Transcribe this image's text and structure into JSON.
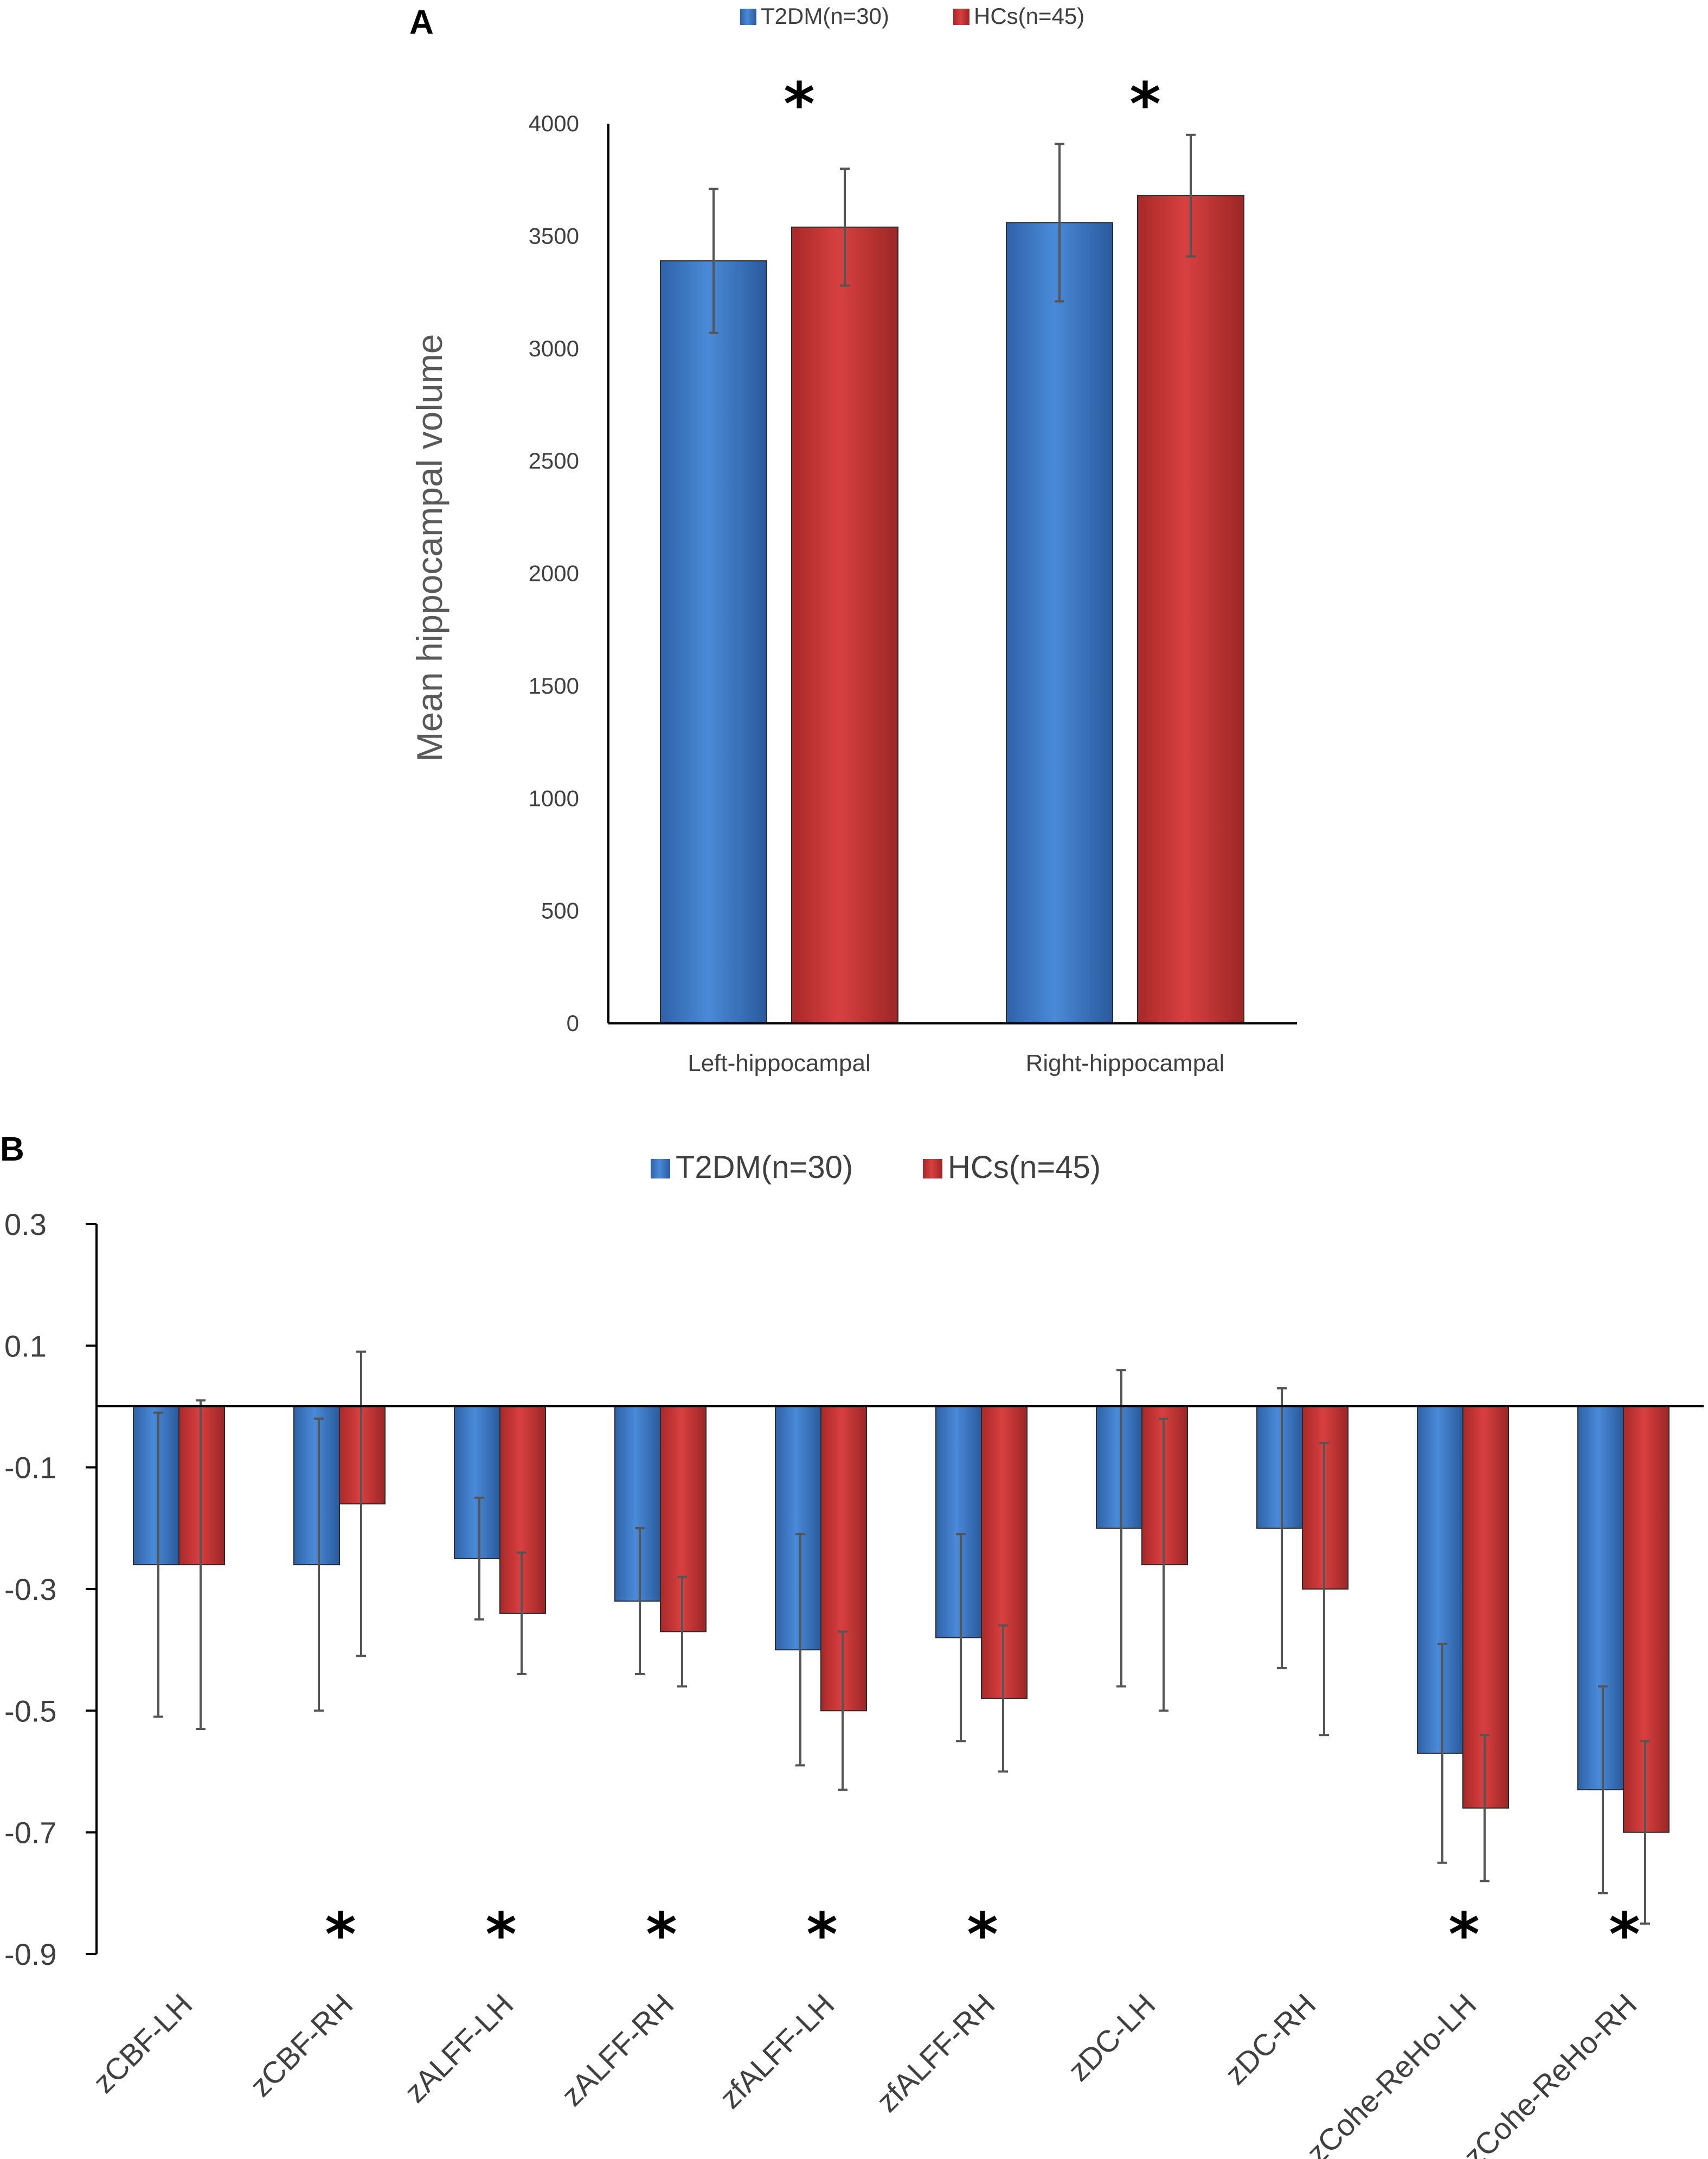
{
  "colors": {
    "t2dm": "#3c78c8",
    "hcs": "#c83232",
    "axis": "#000000",
    "errorbar": "#555555"
  },
  "chart_data": [
    {
      "panel": "A",
      "type": "bar",
      "ylabel": "Mean hippocampal volume",
      "xlabel": "",
      "ylim": [
        0,
        4000
      ],
      "yticks": [
        0,
        500,
        1000,
        1500,
        2000,
        2500,
        3000,
        3500,
        4000
      ],
      "categories": [
        "Left-hippocampal",
        "Right-hippocampal"
      ],
      "series": [
        {
          "name": "T2DM(n=30)",
          "values": [
            3390,
            3560
          ],
          "errors": [
            320,
            350
          ]
        },
        {
          "name": "HCs(n=45)",
          "values": [
            3540,
            3680
          ],
          "errors": [
            260,
            270
          ]
        }
      ],
      "significant": [
        "*",
        "*"
      ],
      "legend": "top"
    },
    {
      "panel": "B",
      "type": "bar",
      "ylim": [
        -0.9,
        0.3
      ],
      "yticks": [
        0.3,
        0.1,
        -0.1,
        -0.3,
        -0.5,
        -0.7,
        -0.9
      ],
      "categories": [
        "zCBF-LH",
        "zCBF-RH",
        "zALFF-LH",
        "zALFF-RH",
        "zfALFF-LH",
        "zfALFF-RH",
        "zDC-LH",
        "zDC-RH",
        "zCohe-ReHo-LH",
        "zCohe-ReHo-RH"
      ],
      "series": [
        {
          "name": "T2DM(n=30)",
          "values": [
            -0.26,
            -0.26,
            -0.25,
            -0.32,
            -0.4,
            -0.38,
            -0.2,
            -0.2,
            -0.57,
            -0.63
          ],
          "errors": [
            0.25,
            0.24,
            0.1,
            0.12,
            0.19,
            0.17,
            0.26,
            0.23,
            0.18,
            0.17
          ]
        },
        {
          "name": "HCs(n=45)",
          "values": [
            -0.26,
            -0.16,
            -0.34,
            -0.37,
            -0.5,
            -0.48,
            -0.26,
            -0.3,
            -0.66,
            -0.7
          ],
          "errors": [
            0.27,
            0.25,
            0.1,
            0.09,
            0.13,
            0.12,
            0.24,
            0.24,
            0.12,
            0.15
          ]
        }
      ],
      "significant": [
        "",
        "*",
        "*",
        "*",
        "*",
        "*",
        "",
        "",
        "*",
        "*"
      ],
      "legend": "top"
    }
  ]
}
